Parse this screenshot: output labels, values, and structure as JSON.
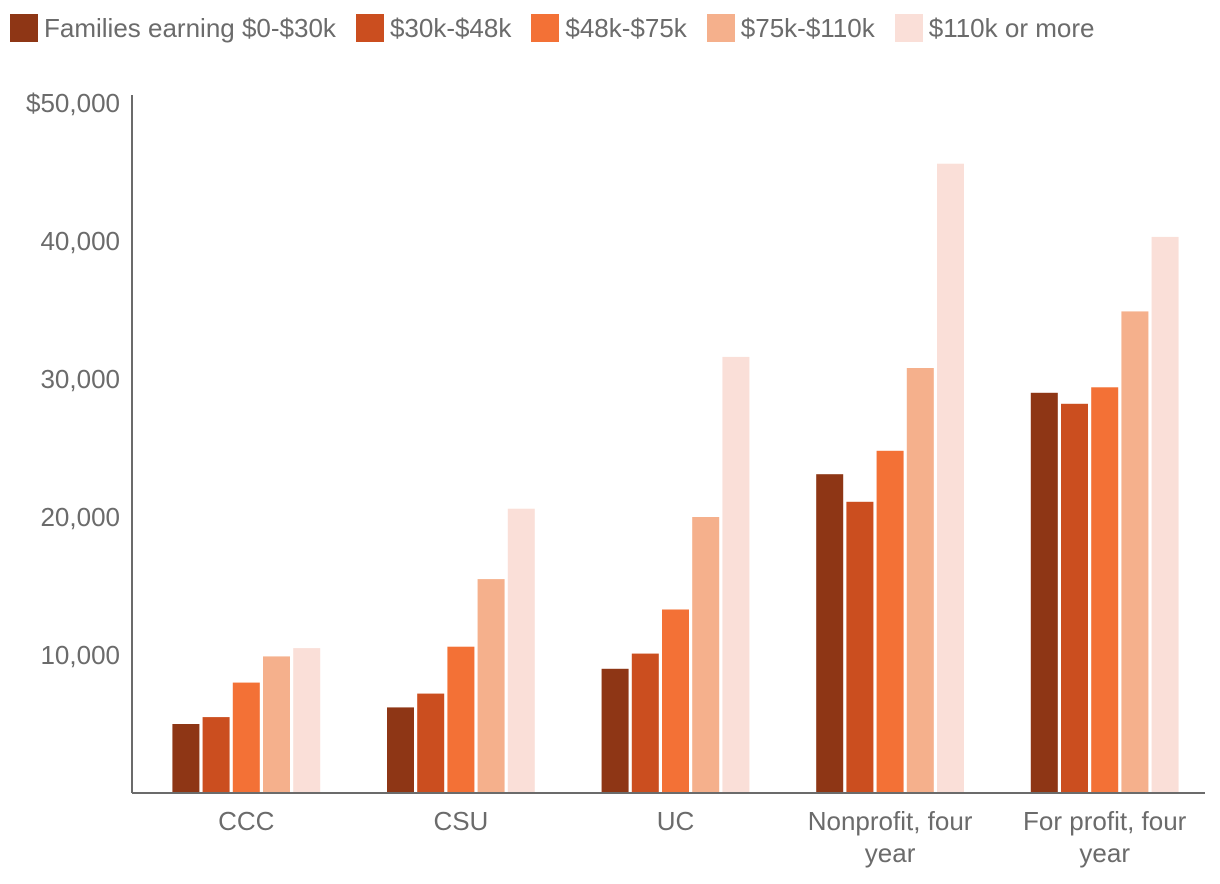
{
  "chart_data": {
    "type": "bar",
    "title": "",
    "xlabel": "",
    "ylabel": "",
    "ylim": [
      0,
      50000
    ],
    "yticks": [
      {
        "value": 10000,
        "label": "10,000"
      },
      {
        "value": 20000,
        "label": "20,000"
      },
      {
        "value": 30000,
        "label": "30,000"
      },
      {
        "value": 40000,
        "label": "40,000"
      },
      {
        "value": 50000,
        "label": "$50,000"
      }
    ],
    "categories": [
      [
        "CCC"
      ],
      [
        "CSU"
      ],
      [
        "UC"
      ],
      [
        "Nonprofit, four",
        "year"
      ],
      [
        "For profit, four",
        "year"
      ]
    ],
    "series": [
      {
        "name": "Families earning $0-$30k",
        "color": "#8e3615",
        "values": [
          5000,
          6200,
          9000,
          23100,
          29000
        ]
      },
      {
        "name": "$30k-$48k",
        "color": "#cb4e1f",
        "values": [
          5500,
          7200,
          10100,
          21100,
          28200
        ]
      },
      {
        "name": "$48k-$75k",
        "color": "#f37136",
        "values": [
          8000,
          10600,
          13300,
          24800,
          29400
        ]
      },
      {
        "name": "$75k-$110k",
        "color": "#f5b08c",
        "values": [
          9900,
          15500,
          20000,
          30800,
          34900
        ]
      },
      {
        "name": "$110k or more",
        "color": "#fadfd8",
        "values": [
          10500,
          20600,
          31600,
          45600,
          40300
        ]
      }
    ],
    "legend_position": "top",
    "grid": false
  }
}
